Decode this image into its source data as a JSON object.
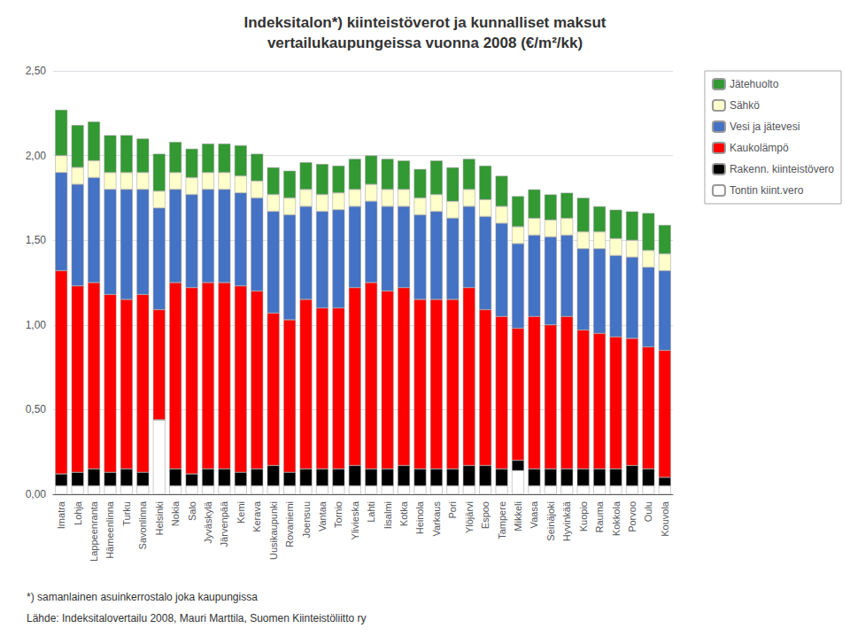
{
  "chart_data": {
    "type": "bar",
    "title": "Indeksitalon*) kiinteistöverot ja kunnalliset maksut",
    "subtitle": "vertailukaupungeissa vuonna 2008 (€/m²/kk)",
    "annotations": [
      "*) samanlainen asuinkerrostalo joka kaupungissa",
      "Lähde: Indeksitalovertailu 2008, Mauri Marttila, Suomen Kiinteistöliitto ry"
    ],
    "categories": [
      "Imatra",
      "Lohja",
      "Lappeenranta",
      "Hämeenlinna",
      "Turku",
      "Savonlinna",
      "Helsinki",
      "Nokia",
      "Salo",
      "Jyväskylä",
      "Järvenpää",
      "Kemi",
      "Kerava",
      "Uusikaupunki",
      "Rovaniemi",
      "Joensuu",
      "Vantaa",
      "Tornio",
      "Ylivieska",
      "Lahti",
      "Iisalmi",
      "Kotka",
      "Heinola",
      "Varkaus",
      "Pori",
      "Ylöjärvi",
      "Espoo",
      "Tampere",
      "Mikkeli",
      "Vaasa",
      "Seinäjoki",
      "Hyvinkää",
      "Kuopio",
      "Rauma",
      "Kokkola",
      "Porvoo",
      "Oulu",
      "Kouvola"
    ],
    "series": [
      {
        "name": "Tontin kiint.vero",
        "color": "#ffffff",
        "values": [
          0.05,
          0.05,
          0.05,
          0.05,
          0.05,
          0.05,
          0.44,
          0.05,
          0.05,
          0.05,
          0.05,
          0.05,
          0.05,
          0.05,
          0.05,
          0.05,
          0.05,
          0.05,
          0.05,
          0.05,
          0.05,
          0.05,
          0.05,
          0.05,
          0.05,
          0.05,
          0.05,
          0.05,
          0.14,
          0.05,
          0.05,
          0.05,
          0.05,
          0.05,
          0.05,
          0.05,
          0.05,
          0.05
        ]
      },
      {
        "name": "Rakenn. kiinteistövero",
        "color": "#000000",
        "values": [
          0.07,
          0.08,
          0.1,
          0.08,
          0.1,
          0.08,
          0.0,
          0.1,
          0.07,
          0.1,
          0.1,
          0.08,
          0.1,
          0.12,
          0.08,
          0.1,
          0.1,
          0.1,
          0.12,
          0.1,
          0.1,
          0.12,
          0.1,
          0.1,
          0.1,
          0.12,
          0.12,
          0.1,
          0.06,
          0.1,
          0.1,
          0.1,
          0.1,
          0.1,
          0.1,
          0.12,
          0.1,
          0.05
        ]
      },
      {
        "name": "Kaukolämpö",
        "color": "#ff0000",
        "values": [
          1.2,
          1.1,
          1.1,
          1.05,
          1.0,
          1.05,
          0.65,
          1.1,
          1.1,
          1.1,
          1.1,
          1.1,
          1.05,
          0.9,
          0.9,
          1.0,
          0.95,
          0.95,
          1.05,
          1.1,
          1.05,
          1.05,
          1.0,
          1.0,
          1.0,
          1.05,
          0.92,
          0.9,
          0.78,
          0.9,
          0.85,
          0.9,
          0.82,
          0.8,
          0.78,
          0.75,
          0.72,
          0.75
        ]
      },
      {
        "name": "Vesi ja jätevesi",
        "color": "#4472c4",
        "values": [
          0.58,
          0.6,
          0.62,
          0.62,
          0.65,
          0.62,
          0.6,
          0.55,
          0.55,
          0.55,
          0.55,
          0.55,
          0.55,
          0.6,
          0.62,
          0.55,
          0.57,
          0.58,
          0.48,
          0.48,
          0.5,
          0.48,
          0.5,
          0.52,
          0.48,
          0.48,
          0.55,
          0.55,
          0.5,
          0.48,
          0.52,
          0.48,
          0.48,
          0.5,
          0.48,
          0.48,
          0.47,
          0.47
        ]
      },
      {
        "name": "Sähkö",
        "color": "#ffffcc",
        "values": [
          0.1,
          0.1,
          0.1,
          0.1,
          0.1,
          0.1,
          0.1,
          0.1,
          0.1,
          0.1,
          0.1,
          0.1,
          0.1,
          0.1,
          0.1,
          0.1,
          0.1,
          0.1,
          0.1,
          0.1,
          0.1,
          0.1,
          0.1,
          0.1,
          0.1,
          0.1,
          0.1,
          0.1,
          0.1,
          0.1,
          0.1,
          0.1,
          0.1,
          0.1,
          0.1,
          0.1,
          0.1,
          0.1
        ]
      },
      {
        "name": "Jätehuolto",
        "color": "#339933",
        "values": [
          0.27,
          0.25,
          0.23,
          0.22,
          0.22,
          0.2,
          0.22,
          0.18,
          0.17,
          0.17,
          0.17,
          0.18,
          0.16,
          0.16,
          0.16,
          0.16,
          0.18,
          0.16,
          0.18,
          0.17,
          0.18,
          0.17,
          0.17,
          0.2,
          0.2,
          0.18,
          0.2,
          0.18,
          0.18,
          0.17,
          0.15,
          0.15,
          0.2,
          0.15,
          0.17,
          0.17,
          0.22,
          0.17
        ]
      }
    ],
    "ylim": [
      0,
      2.5
    ],
    "yticks": [
      {
        "value": 0,
        "label": "0,00"
      },
      {
        "value": 0.5,
        "label": "0,50"
      },
      {
        "value": 1,
        "label": "1,00"
      },
      {
        "value": 1.5,
        "label": "1,50"
      },
      {
        "value": 2,
        "label": "2,00"
      },
      {
        "value": 2.5,
        "label": "2,50"
      }
    ],
    "stacked": true,
    "grid": true,
    "legend": "right"
  }
}
